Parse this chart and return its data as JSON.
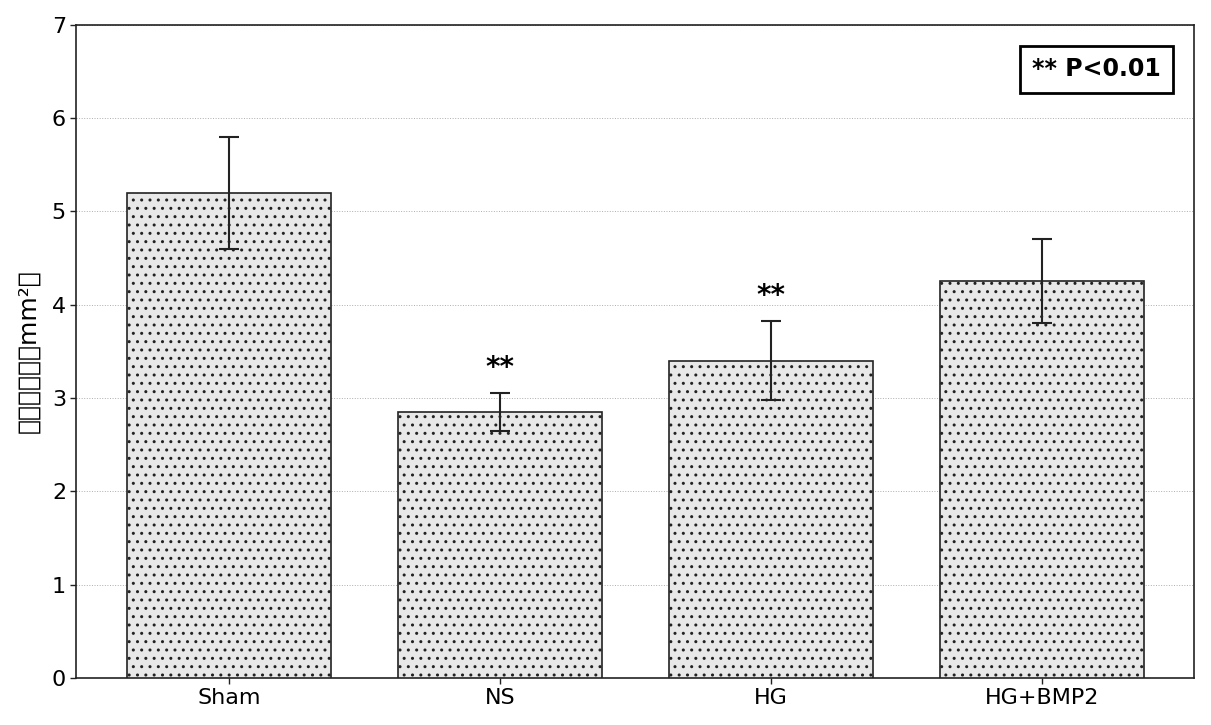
{
  "categories": [
    "Sham",
    "NS",
    "HG",
    "HG+BMP2"
  ],
  "values": [
    5.2,
    2.85,
    3.4,
    4.25
  ],
  "errors": [
    0.6,
    0.2,
    0.42,
    0.45
  ],
  "ylabel": "软骨层面积（mm²）",
  "ylim": [
    0,
    7
  ],
  "yticks": [
    0,
    1,
    2,
    3,
    4,
    5,
    6,
    7
  ],
  "bar_color": "#e8e8e8",
  "bar_edgecolor": "#222222",
  "significance": [
    false,
    true,
    true,
    false
  ],
  "sig_label": "**",
  "legend_text": "** P<0.01",
  "grid_color": "#999999",
  "background_color": "#ffffff",
  "bar_width": 0.75,
  "axis_fontsize": 18,
  "tick_fontsize": 16,
  "sig_fontsize": 20,
  "legend_fontsize": 17
}
